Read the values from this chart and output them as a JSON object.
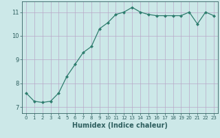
{
  "x": [
    0,
    1,
    2,
    3,
    4,
    5,
    6,
    7,
    8,
    9,
    10,
    11,
    12,
    13,
    14,
    15,
    16,
    17,
    18,
    19,
    20,
    21,
    22,
    23
  ],
  "y": [
    7.6,
    7.25,
    7.2,
    7.25,
    7.6,
    8.3,
    8.8,
    9.3,
    9.55,
    10.3,
    10.55,
    10.9,
    11.0,
    11.2,
    11.0,
    10.9,
    10.85,
    10.85,
    10.85,
    10.85,
    11.0,
    10.5,
    11.0,
    10.85
  ],
  "line_color": "#2e7d6e",
  "marker": "D",
  "marker_size": 2,
  "bg_color": "#cce8e8",
  "grid_color": "#b8a8c8",
  "xlabel": "Humidex (Indice chaleur)",
  "xlim": [
    -0.5,
    23.5
  ],
  "ylim": [
    6.75,
    11.45
  ],
  "yticks": [
    7,
    8,
    9,
    10,
    11
  ],
  "xticks": [
    0,
    1,
    2,
    3,
    4,
    5,
    6,
    7,
    8,
    9,
    10,
    11,
    12,
    13,
    14,
    15,
    16,
    17,
    18,
    19,
    20,
    21,
    22,
    23
  ],
  "font_color": "#2e5f5f",
  "xlabel_fontsize": 7.0,
  "xtick_fontsize": 5.0,
  "ytick_fontsize": 6.0
}
